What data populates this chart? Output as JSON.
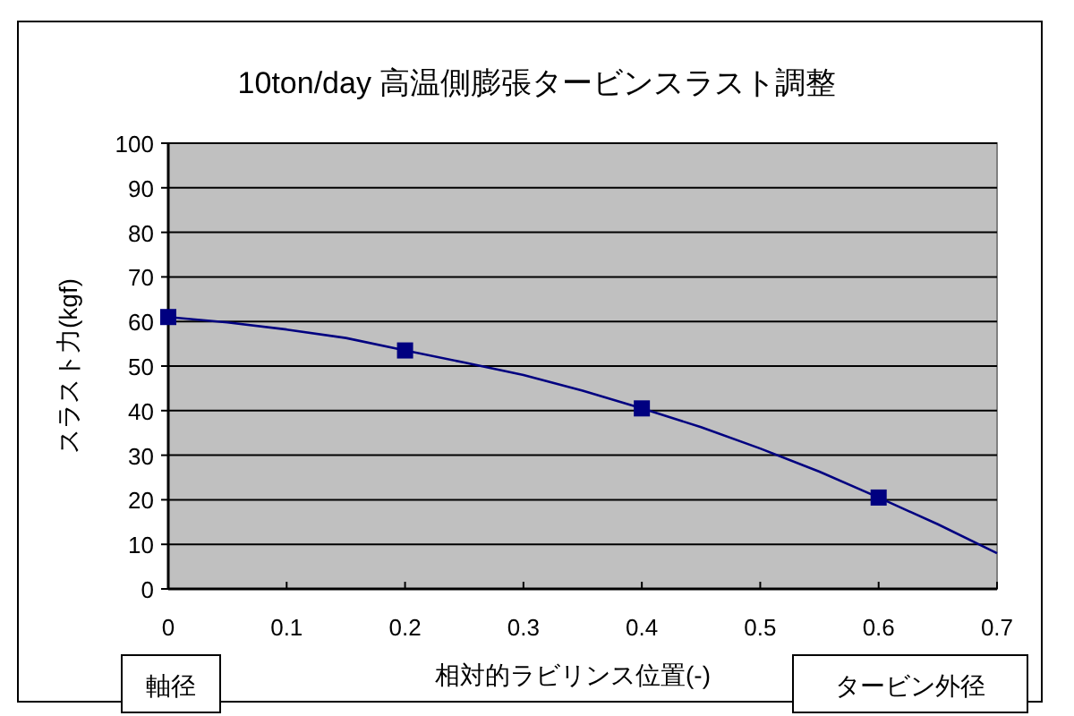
{
  "chart_data": {
    "type": "scatter",
    "title": "10ton/day 高温側膨張タービンスラスト調整",
    "xlabel": "相対的ラビリンス位置(-)",
    "ylabel": "スラスト力(kgf)",
    "annotations": [
      "軸径",
      "タービン外径"
    ],
    "series": [
      {
        "color": "#000080",
        "marker": "square",
        "x": [
          0,
          0.2,
          0.4,
          0.6
        ],
        "values": [
          61,
          53.5,
          40.5,
          20.5
        ]
      },
      {
        "type": "line",
        "color": "#000080",
        "marker": "none",
        "x": [
          0,
          0.05,
          0.1,
          0.15,
          0.2,
          0.25,
          0.3,
          0.35,
          0.4,
          0.45,
          0.5,
          0.55,
          0.6,
          0.65,
          0.7
        ],
        "values": [
          61,
          59.8,
          58.2,
          56.3,
          53.5,
          50.8,
          48,
          44.5,
          40.5,
          36.3,
          31.5,
          26.3,
          20.5,
          14.5,
          8
        ]
      }
    ],
    "xlim": [
      0,
      0.7
    ],
    "xticks": [
      0,
      0.1,
      0.2,
      0.3,
      0.4,
      0.5,
      0.6,
      0.7
    ],
    "ylim": [
      0,
      100
    ],
    "yticks": [
      0,
      10,
      20,
      30,
      40,
      50,
      60,
      70,
      80,
      90,
      100
    ],
    "grid": "y"
  }
}
